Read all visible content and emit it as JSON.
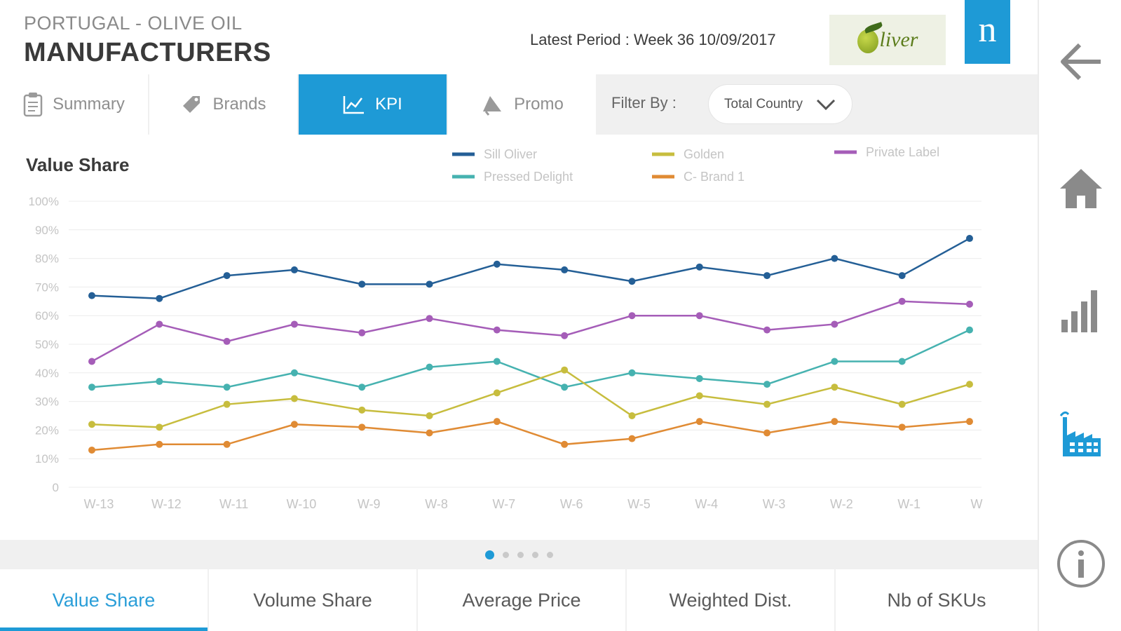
{
  "header": {
    "country": "PORTUGAL - OLIVE OIL",
    "title": "MANUFACTURERS",
    "latest_period": "Latest Period : Week 36 10/09/2017",
    "brand_logo_text": "liver",
    "provider_logo_text": "n"
  },
  "tabs": [
    {
      "label": "Summary",
      "icon": "clipboard-icon",
      "active": false
    },
    {
      "label": "Brands",
      "icon": "tag-icon",
      "active": false
    },
    {
      "label": "KPI",
      "icon": "line-chart-icon",
      "active": true
    },
    {
      "label": "Promo",
      "icon": "megaphone-icon",
      "active": false
    }
  ],
  "filter": {
    "label": "Filter By :",
    "selected": "Total Country"
  },
  "rail": {
    "icons": [
      "back-arrow-icon",
      "home-icon",
      "bar-chart-icon",
      "factory-icon",
      "info-icon"
    ],
    "active": "factory-icon"
  },
  "pager": {
    "pages": 5,
    "active": 0
  },
  "metrics": [
    {
      "label": "Value Share",
      "active": true
    },
    {
      "label": "Volume Share",
      "active": false
    },
    {
      "label": "Average Price",
      "active": false
    },
    {
      "label": "Weighted Dist.",
      "active": false
    },
    {
      "label": "Nb of SKUs",
      "active": false
    }
  ],
  "chart_data": {
    "type": "line",
    "title": "Value Share",
    "xlabel": "",
    "ylabel": "",
    "ylim": [
      0,
      100
    ],
    "yticks": [
      "0",
      "10%",
      "20%",
      "30%",
      "40%",
      "50%",
      "60%",
      "70%",
      "80%",
      "90%",
      "100%"
    ],
    "grid": true,
    "legend_position": "top",
    "x": [
      "W-13",
      "W-12",
      "W-11",
      "W-10",
      "W-9",
      "W-8",
      "W-7",
      "W-6",
      "W-5",
      "W-4",
      "W-3",
      "W-2",
      "W-1",
      "W"
    ],
    "series": [
      {
        "name": "Sill Oliver",
        "color": "#245f96",
        "values": [
          67,
          66,
          74,
          76,
          71,
          71,
          78,
          76,
          72,
          77,
          74,
          80,
          74,
          87
        ]
      },
      {
        "name": "Pressed Delight",
        "color": "#46b2b0",
        "values": [
          35,
          37,
          35,
          40,
          35,
          42,
          44,
          35,
          40,
          38,
          36,
          44,
          44,
          55
        ]
      },
      {
        "name": "Golden",
        "color": "#c7bd3e",
        "values": [
          22,
          21,
          29,
          31,
          27,
          25,
          33,
          41,
          25,
          32,
          29,
          35,
          29,
          36
        ]
      },
      {
        "name": "C- Brand 1",
        "color": "#e08b34",
        "values": [
          13,
          15,
          15,
          22,
          21,
          19,
          23,
          15,
          17,
          23,
          19,
          23,
          21,
          23
        ]
      },
      {
        "name": "Private Label",
        "color": "#a55db8",
        "values": [
          44,
          57,
          51,
          57,
          54,
          59,
          55,
          53,
          60,
          60,
          55,
          57,
          65,
          64
        ]
      }
    ]
  }
}
